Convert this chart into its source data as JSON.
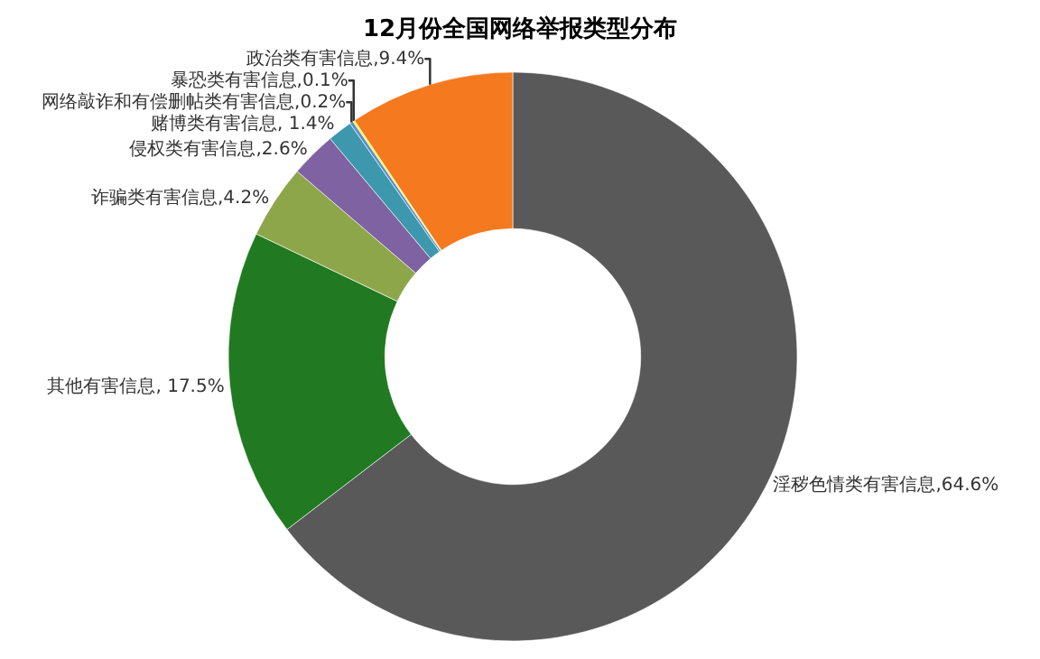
{
  "chart_data": {
    "type": "donut",
    "title": "12月份全国网络举报类型分布",
    "categories": [
      "淫秽色情类有害信息",
      "其他有害信息",
      "诈骗类有害信息",
      "侵权类有害信息",
      "赌博类有害信息",
      "网络敲诈和有偿删帖类有害信息",
      "暴恐类有害信息",
      "政治类有害信息"
    ],
    "values": [
      64.6,
      17.5,
      4.2,
      2.6,
      1.4,
      0.2,
      0.1,
      9.4
    ],
    "value_labels": [
      "64.6%",
      " 17.5%",
      "4.2%",
      "2.6%",
      " 1.4%",
      "0.2%",
      "0.1%",
      "9.4%"
    ],
    "colors": [
      "#595959",
      "#217a21",
      "#8ea64a",
      "#7e62a1",
      "#3d97ad",
      "#5b8fd6",
      "#ffff00",
      "#f5791f"
    ],
    "legend": false
  }
}
